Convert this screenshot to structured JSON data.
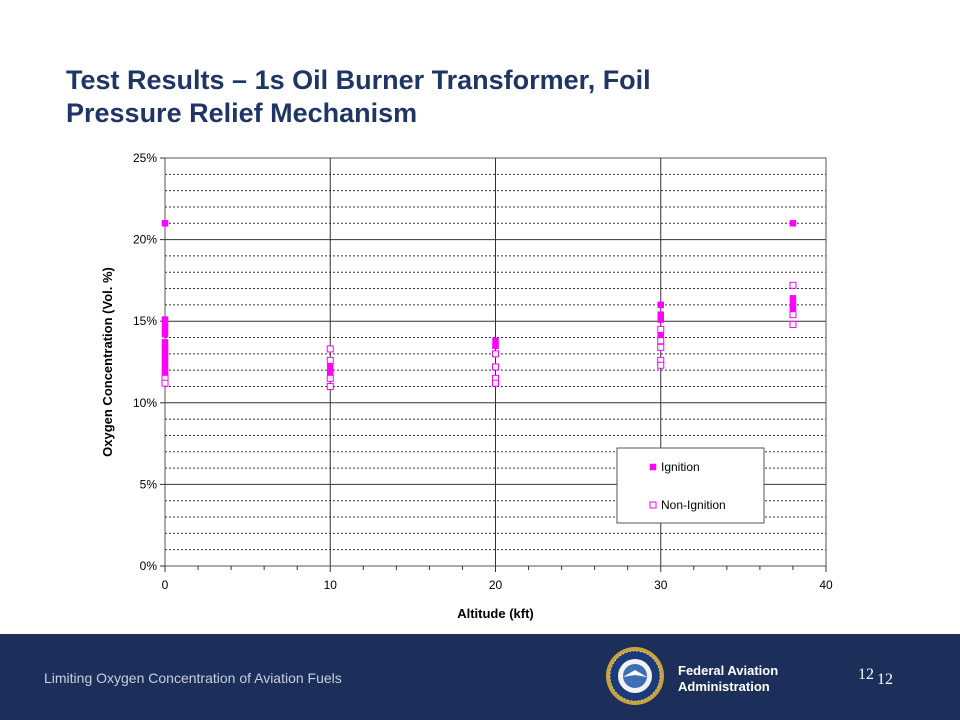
{
  "slide": {
    "title_line1": "Test Results – 1s Oil Burner Transformer, Foil",
    "title_line2": "Pressure Relief Mechanism"
  },
  "footer": {
    "caption": "Limiting Oxygen Concentration of Aviation Fuels",
    "agency_line1": "Federal Aviation",
    "agency_line2": "Administration",
    "page_number": "12",
    "page_number_repeat": "12"
  },
  "colors": {
    "title": "#1f3566",
    "footer_bg": "#1c2f5b",
    "series_color": "#ff00ff",
    "seal_blue": "#1c3a7a",
    "seal_gold": "#c9a23a"
  },
  "icons": {
    "seal": "faa-seal-icon"
  },
  "chart_data": {
    "type": "scatter",
    "title": "",
    "xlabel": "Altitude (kft)",
    "ylabel": "Oxygen Concentration (Vol. %)",
    "xlim": [
      0,
      40
    ],
    "ylim": [
      0,
      25
    ],
    "x_ticks": [
      "0",
      "10",
      "20",
      "30",
      "40"
    ],
    "y_ticks": [
      "0%",
      "5%",
      "10%",
      "15%",
      "20%",
      "25%"
    ],
    "grid": {
      "major_x": true,
      "major_y": true,
      "minor_y_dashed": true
    },
    "legend_position": "bottom-right",
    "series": [
      {
        "name": "Ignition",
        "marker": "filled-square",
        "x": [
          0,
          0,
          0,
          0,
          0,
          0,
          0,
          0,
          0,
          0,
          0,
          0,
          0,
          0,
          10,
          10,
          10,
          20,
          20,
          30,
          30,
          30,
          30,
          30,
          38,
          38,
          38,
          38
        ],
        "y": [
          21,
          15.1,
          14.8,
          14.5,
          14.2,
          13.7,
          13.4,
          13.1,
          12.8,
          12.5,
          12.2,
          11.9,
          11.6,
          11.4,
          12.4,
          12.1,
          11.8,
          13.8,
          13.5,
          16,
          15.4,
          15.1,
          14.3,
          14,
          21,
          16.4,
          16,
          15.7
        ]
      },
      {
        "name": "Non-Ignition",
        "marker": "hollow-square",
        "x": [
          0,
          0,
          10,
          10,
          10,
          10,
          20,
          20,
          20,
          20,
          30,
          30,
          30,
          30,
          30,
          38,
          38,
          38
        ],
        "y": [
          11.5,
          11.2,
          13.3,
          12.6,
          11.5,
          11,
          13,
          12.2,
          11.5,
          11.2,
          14.5,
          13.8,
          13.4,
          12.6,
          12.3,
          17.2,
          15.4,
          14.8
        ]
      }
    ]
  }
}
